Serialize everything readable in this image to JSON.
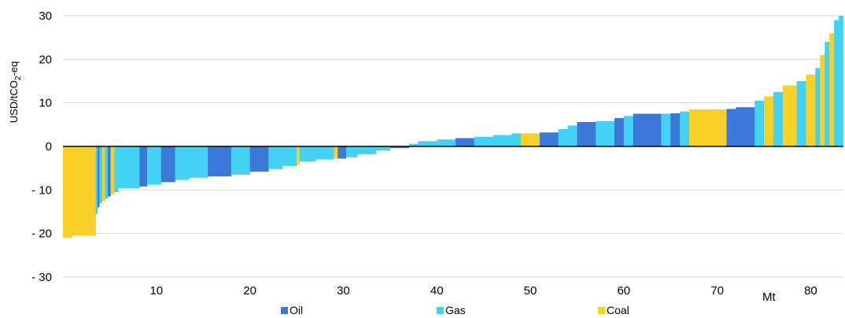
{
  "chart_data": {
    "type": "bar",
    "title": "",
    "xlabel": "Mt",
    "ylabel": "USD/tCO2-eq",
    "ylabel_main": "USD/tCO",
    "ylabel_sub": "2",
    "ylabel_tail": "-eq",
    "xlim": [
      0,
      83.5
    ],
    "ylim": [
      -30,
      30
    ],
    "x_ticks": [
      10,
      20,
      30,
      40,
      50,
      60,
      70,
      80
    ],
    "y_ticks": [
      30,
      20,
      10,
      0,
      -10,
      -20,
      -30
    ],
    "y_tick_labels": [
      "30",
      "20",
      "10",
      "0",
      "- 10",
      "- 20",
      "- 30"
    ],
    "grid": true,
    "legend_position": "bottom",
    "series": [
      {
        "name": "Oil",
        "color": "#3b78d8"
      },
      {
        "name": "Gas",
        "color": "#44d2f4"
      },
      {
        "name": "Coal",
        "color": "#f9d026"
      }
    ],
    "bars": [
      {
        "x0": 0.0,
        "x1": 1.0,
        "value": -21.0,
        "series": "Coal"
      },
      {
        "x0": 1.0,
        "x1": 3.5,
        "value": -20.5,
        "series": "Coal"
      },
      {
        "x0": 3.5,
        "x1": 3.7,
        "value": -15.5,
        "series": "Gas"
      },
      {
        "x0": 3.7,
        "x1": 3.9,
        "value": -14.0,
        "series": "Oil"
      },
      {
        "x0": 3.9,
        "x1": 4.2,
        "value": -13.0,
        "series": "Gas"
      },
      {
        "x0": 4.2,
        "x1": 4.5,
        "value": -12.5,
        "series": "Coal"
      },
      {
        "x0": 4.5,
        "x1": 4.8,
        "value": -12.0,
        "series": "Gas"
      },
      {
        "x0": 4.8,
        "x1": 5.1,
        "value": -11.5,
        "series": "Oil"
      },
      {
        "x0": 5.1,
        "x1": 5.5,
        "value": -11.0,
        "series": "Coal"
      },
      {
        "x0": 5.5,
        "x1": 5.9,
        "value": -10.5,
        "series": "Gas"
      },
      {
        "x0": 5.9,
        "x1": 8.2,
        "value": -9.6,
        "series": "Gas"
      },
      {
        "x0": 8.2,
        "x1": 9.0,
        "value": -9.2,
        "series": "Oil"
      },
      {
        "x0": 9.0,
        "x1": 10.5,
        "value": -8.8,
        "series": "Gas"
      },
      {
        "x0": 10.5,
        "x1": 12.0,
        "value": -8.2,
        "series": "Oil"
      },
      {
        "x0": 12.0,
        "x1": 13.5,
        "value": -7.7,
        "series": "Gas"
      },
      {
        "x0": 13.5,
        "x1": 15.5,
        "value": -7.2,
        "series": "Gas"
      },
      {
        "x0": 15.5,
        "x1": 18.0,
        "value": -6.9,
        "series": "Oil"
      },
      {
        "x0": 18.0,
        "x1": 20.0,
        "value": -6.5,
        "series": "Gas"
      },
      {
        "x0": 20.0,
        "x1": 22.0,
        "value": -5.8,
        "series": "Oil"
      },
      {
        "x0": 22.0,
        "x1": 23.5,
        "value": -5.2,
        "series": "Gas"
      },
      {
        "x0": 23.5,
        "x1": 25.0,
        "value": -4.5,
        "series": "Gas"
      },
      {
        "x0": 25.0,
        "x1": 25.3,
        "value": -4.2,
        "series": "Coal"
      },
      {
        "x0": 25.3,
        "x1": 27.0,
        "value": -3.5,
        "series": "Gas"
      },
      {
        "x0": 27.0,
        "x1": 29.0,
        "value": -3.0,
        "series": "Gas"
      },
      {
        "x0": 29.0,
        "x1": 29.4,
        "value": -2.8,
        "series": "Coal"
      },
      {
        "x0": 29.4,
        "x1": 30.3,
        "value": -2.8,
        "series": "Oil"
      },
      {
        "x0": 30.3,
        "x1": 31.5,
        "value": -2.5,
        "series": "Gas"
      },
      {
        "x0": 31.5,
        "x1": 33.5,
        "value": -1.8,
        "series": "Gas"
      },
      {
        "x0": 33.5,
        "x1": 35.0,
        "value": -0.9,
        "series": "Gas"
      },
      {
        "x0": 35.0,
        "x1": 37.0,
        "value": -0.4,
        "series": "Oil"
      },
      {
        "x0": 37.0,
        "x1": 38.0,
        "value": 0.6,
        "series": "Gas"
      },
      {
        "x0": 38.0,
        "x1": 40.0,
        "value": 1.2,
        "series": "Gas"
      },
      {
        "x0": 40.0,
        "x1": 42.0,
        "value": 1.6,
        "series": "Gas"
      },
      {
        "x0": 42.0,
        "x1": 44.0,
        "value": 1.9,
        "series": "Oil"
      },
      {
        "x0": 44.0,
        "x1": 46.0,
        "value": 2.2,
        "series": "Gas"
      },
      {
        "x0": 46.0,
        "x1": 48.0,
        "value": 2.6,
        "series": "Gas"
      },
      {
        "x0": 48.0,
        "x1": 49.0,
        "value": 3.0,
        "series": "Gas"
      },
      {
        "x0": 49.0,
        "x1": 51.0,
        "value": 3.0,
        "series": "Coal"
      },
      {
        "x0": 51.0,
        "x1": 53.0,
        "value": 3.2,
        "series": "Oil"
      },
      {
        "x0": 53.0,
        "x1": 54.0,
        "value": 4.0,
        "series": "Gas"
      },
      {
        "x0": 54.0,
        "x1": 55.0,
        "value": 4.8,
        "series": "Gas"
      },
      {
        "x0": 55.0,
        "x1": 57.0,
        "value": 5.6,
        "series": "Oil"
      },
      {
        "x0": 57.0,
        "x1": 59.0,
        "value": 5.8,
        "series": "Gas"
      },
      {
        "x0": 59.0,
        "x1": 60.0,
        "value": 6.5,
        "series": "Oil"
      },
      {
        "x0": 60.0,
        "x1": 61.0,
        "value": 7.0,
        "series": "Gas"
      },
      {
        "x0": 61.0,
        "x1": 64.0,
        "value": 7.5,
        "series": "Oil"
      },
      {
        "x0": 64.0,
        "x1": 65.0,
        "value": 7.5,
        "series": "Gas"
      },
      {
        "x0": 65.0,
        "x1": 66.0,
        "value": 7.6,
        "series": "Oil"
      },
      {
        "x0": 66.0,
        "x1": 67.0,
        "value": 8.0,
        "series": "Gas"
      },
      {
        "x0": 67.0,
        "x1": 71.0,
        "value": 8.5,
        "series": "Coal"
      },
      {
        "x0": 71.0,
        "x1": 72.0,
        "value": 8.6,
        "series": "Oil"
      },
      {
        "x0": 72.0,
        "x1": 74.0,
        "value": 9.0,
        "series": "Oil"
      },
      {
        "x0": 74.0,
        "x1": 75.0,
        "value": 10.5,
        "series": "Gas"
      },
      {
        "x0": 75.0,
        "x1": 76.0,
        "value": 11.5,
        "series": "Coal"
      },
      {
        "x0": 76.0,
        "x1": 77.0,
        "value": 12.5,
        "series": "Gas"
      },
      {
        "x0": 77.0,
        "x1": 78.5,
        "value": 14.0,
        "series": "Coal"
      },
      {
        "x0": 78.5,
        "x1": 79.5,
        "value": 15.0,
        "series": "Gas"
      },
      {
        "x0": 79.5,
        "x1": 80.5,
        "value": 16.5,
        "series": "Coal"
      },
      {
        "x0": 80.5,
        "x1": 81.0,
        "value": 18.0,
        "series": "Gas"
      },
      {
        "x0": 81.0,
        "x1": 81.5,
        "value": 21.0,
        "series": "Coal"
      },
      {
        "x0": 81.5,
        "x1": 82.0,
        "value": 24.0,
        "series": "Gas"
      },
      {
        "x0": 82.0,
        "x1": 82.5,
        "value": 26.0,
        "series": "Coal"
      },
      {
        "x0": 82.5,
        "x1": 83.0,
        "value": 29.0,
        "series": "Gas"
      },
      {
        "x0": 83.0,
        "x1": 83.5,
        "value": 30.0,
        "series": "Gas"
      }
    ]
  }
}
